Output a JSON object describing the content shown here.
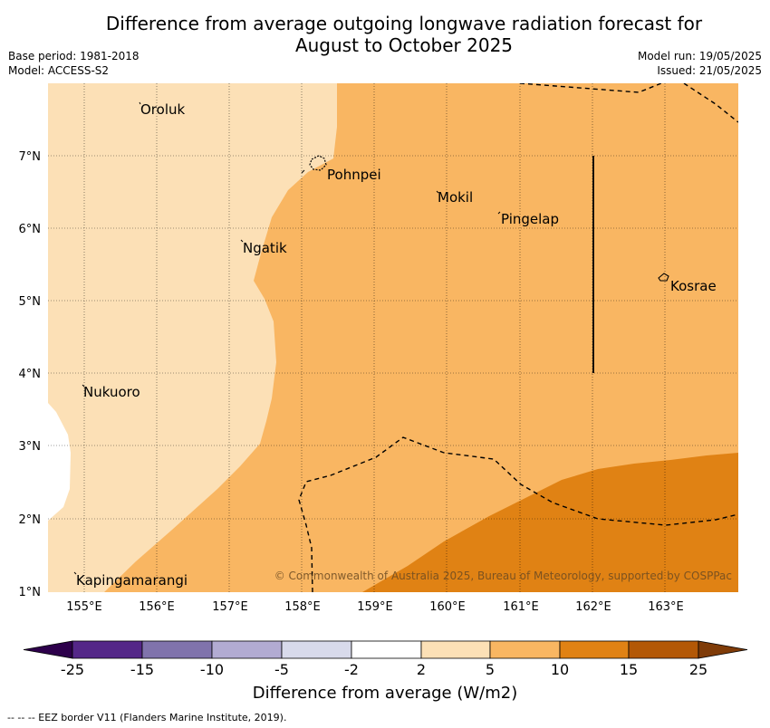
{
  "header": {
    "title_line1": "Difference from average outgoing longwave radiation forecast for",
    "title_line2": "August to October 2025",
    "base_period": "Base period: 1981-2018",
    "model": "Model: ACCESS-S2",
    "model_run": "Model run: 19/05/2025",
    "issued": "Issued: 21/05/2025"
  },
  "map": {
    "lon_labels": [
      "155°E",
      "156°E",
      "157°E",
      "158°E",
      "159°E",
      "160°E",
      "161°E",
      "162°E",
      "163°E"
    ],
    "lat_labels": [
      "7°N",
      "6°N",
      "5°N",
      "4°N",
      "3°N",
      "2°N",
      "1°N"
    ],
    "places": [
      {
        "name": "Oroluk"
      },
      {
        "name": "Pohnpei"
      },
      {
        "name": "Mokil"
      },
      {
        "name": "Pingelap"
      },
      {
        "name": "Ngatik"
      },
      {
        "name": "Kosrae"
      },
      {
        "name": "Nukuoro"
      },
      {
        "name": "Kapingamarangi"
      }
    ],
    "copyright": "© Commonwealth of Australia 2025, Bureau of Meteorology, supported by COSPPac",
    "colors": {
      "c2_5": "#fce0b6",
      "c5_10": "#f9b662",
      "c10_15": "#e08214",
      "c15_25": "#b35806"
    }
  },
  "colorbar": {
    "ticks": [
      "-25",
      "-15",
      "-10",
      "-5",
      "-2",
      "2",
      "5",
      "10",
      "15",
      "25"
    ],
    "colors": [
      "#2d004b",
      "#542788",
      "#8073ac",
      "#b2abd2",
      "#d8daeb",
      "#ffffff",
      "#fce0b6",
      "#f9b662",
      "#e08214",
      "#b35806",
      "#7f3b08"
    ],
    "title": "Difference from average (W/m2)"
  },
  "footer": {
    "legend": "--  --  -- EEZ border V11 (Flanders Marine Institute, 2019)."
  }
}
